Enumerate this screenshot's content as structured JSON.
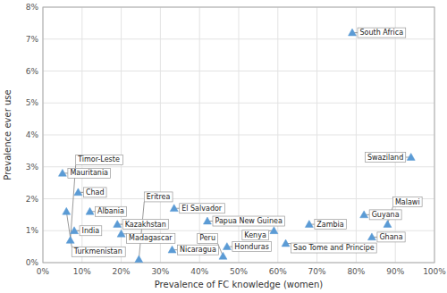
{
  "chart_data": {
    "type": "scatter",
    "x_label": "Prevalence of FC knowledge (women)",
    "y_label": "Prevalence ever use",
    "x": [
      0.05,
      0.09,
      0.06,
      0.12,
      0.08,
      0.07,
      0.19,
      0.2,
      0.245,
      0.335,
      0.33,
      0.42,
      0.47,
      0.46,
      0.59,
      0.62,
      0.68,
      0.79,
      0.82,
      0.84,
      0.88,
      0.94
    ],
    "values": [
      0.028,
      0.022,
      0.016,
      0.016,
      0.01,
      0.007,
      0.012,
      0.009,
      0.001,
      0.017,
      0.004,
      0.013,
      0.005,
      0.002,
      0.01,
      0.006,
      0.012,
      0.072,
      0.015,
      0.008,
      0.012,
      0.033
    ],
    "annotations": [
      "Mauritania",
      "Chad",
      "Turkmenistan",
      "Albania",
      "India",
      "Timor-Leste",
      "Kazakhstan",
      "Madagascar",
      "Eritrea",
      "El Salvador",
      "Nicaragua",
      "Papua New Guinea",
      "Honduras",
      "Peru",
      "Kenya",
      "Sao Tome and Principe",
      "Zambia",
      "South Africa",
      "Guyana",
      "Ghana",
      "Malawi",
      "Swaziland"
    ],
    "color": "#5B9BD5",
    "marker": "triangle",
    "xlim": [
      0,
      1.0
    ],
    "ylim": [
      0,
      0.08
    ],
    "xticks": [
      {
        "value": 0.0,
        "label": "0%"
      },
      {
        "value": 0.1,
        "label": "10%"
      },
      {
        "value": 0.2,
        "label": "20%"
      },
      {
        "value": 0.3,
        "label": "30%"
      },
      {
        "value": 0.4,
        "label": "40%"
      },
      {
        "value": 0.5,
        "label": "50%"
      },
      {
        "value": 0.6,
        "label": "60%"
      },
      {
        "value": 0.7,
        "label": "70%"
      },
      {
        "value": 0.8,
        "label": "80%"
      },
      {
        "value": 0.9,
        "label": "90%"
      },
      {
        "value": 1.0,
        "label": "100%"
      }
    ],
    "yticks": [
      {
        "value": 0.0,
        "label": "0%"
      },
      {
        "value": 0.01,
        "label": "1%"
      },
      {
        "value": 0.02,
        "label": "2%"
      },
      {
        "value": 0.03,
        "label": "3%"
      },
      {
        "value": 0.04,
        "label": "4%"
      },
      {
        "value": 0.05,
        "label": "5%"
      },
      {
        "value": 0.06,
        "label": "6%"
      },
      {
        "value": 0.07,
        "label": "7%"
      },
      {
        "value": 0.08,
        "label": "8%"
      }
    ],
    "grid": true
  }
}
